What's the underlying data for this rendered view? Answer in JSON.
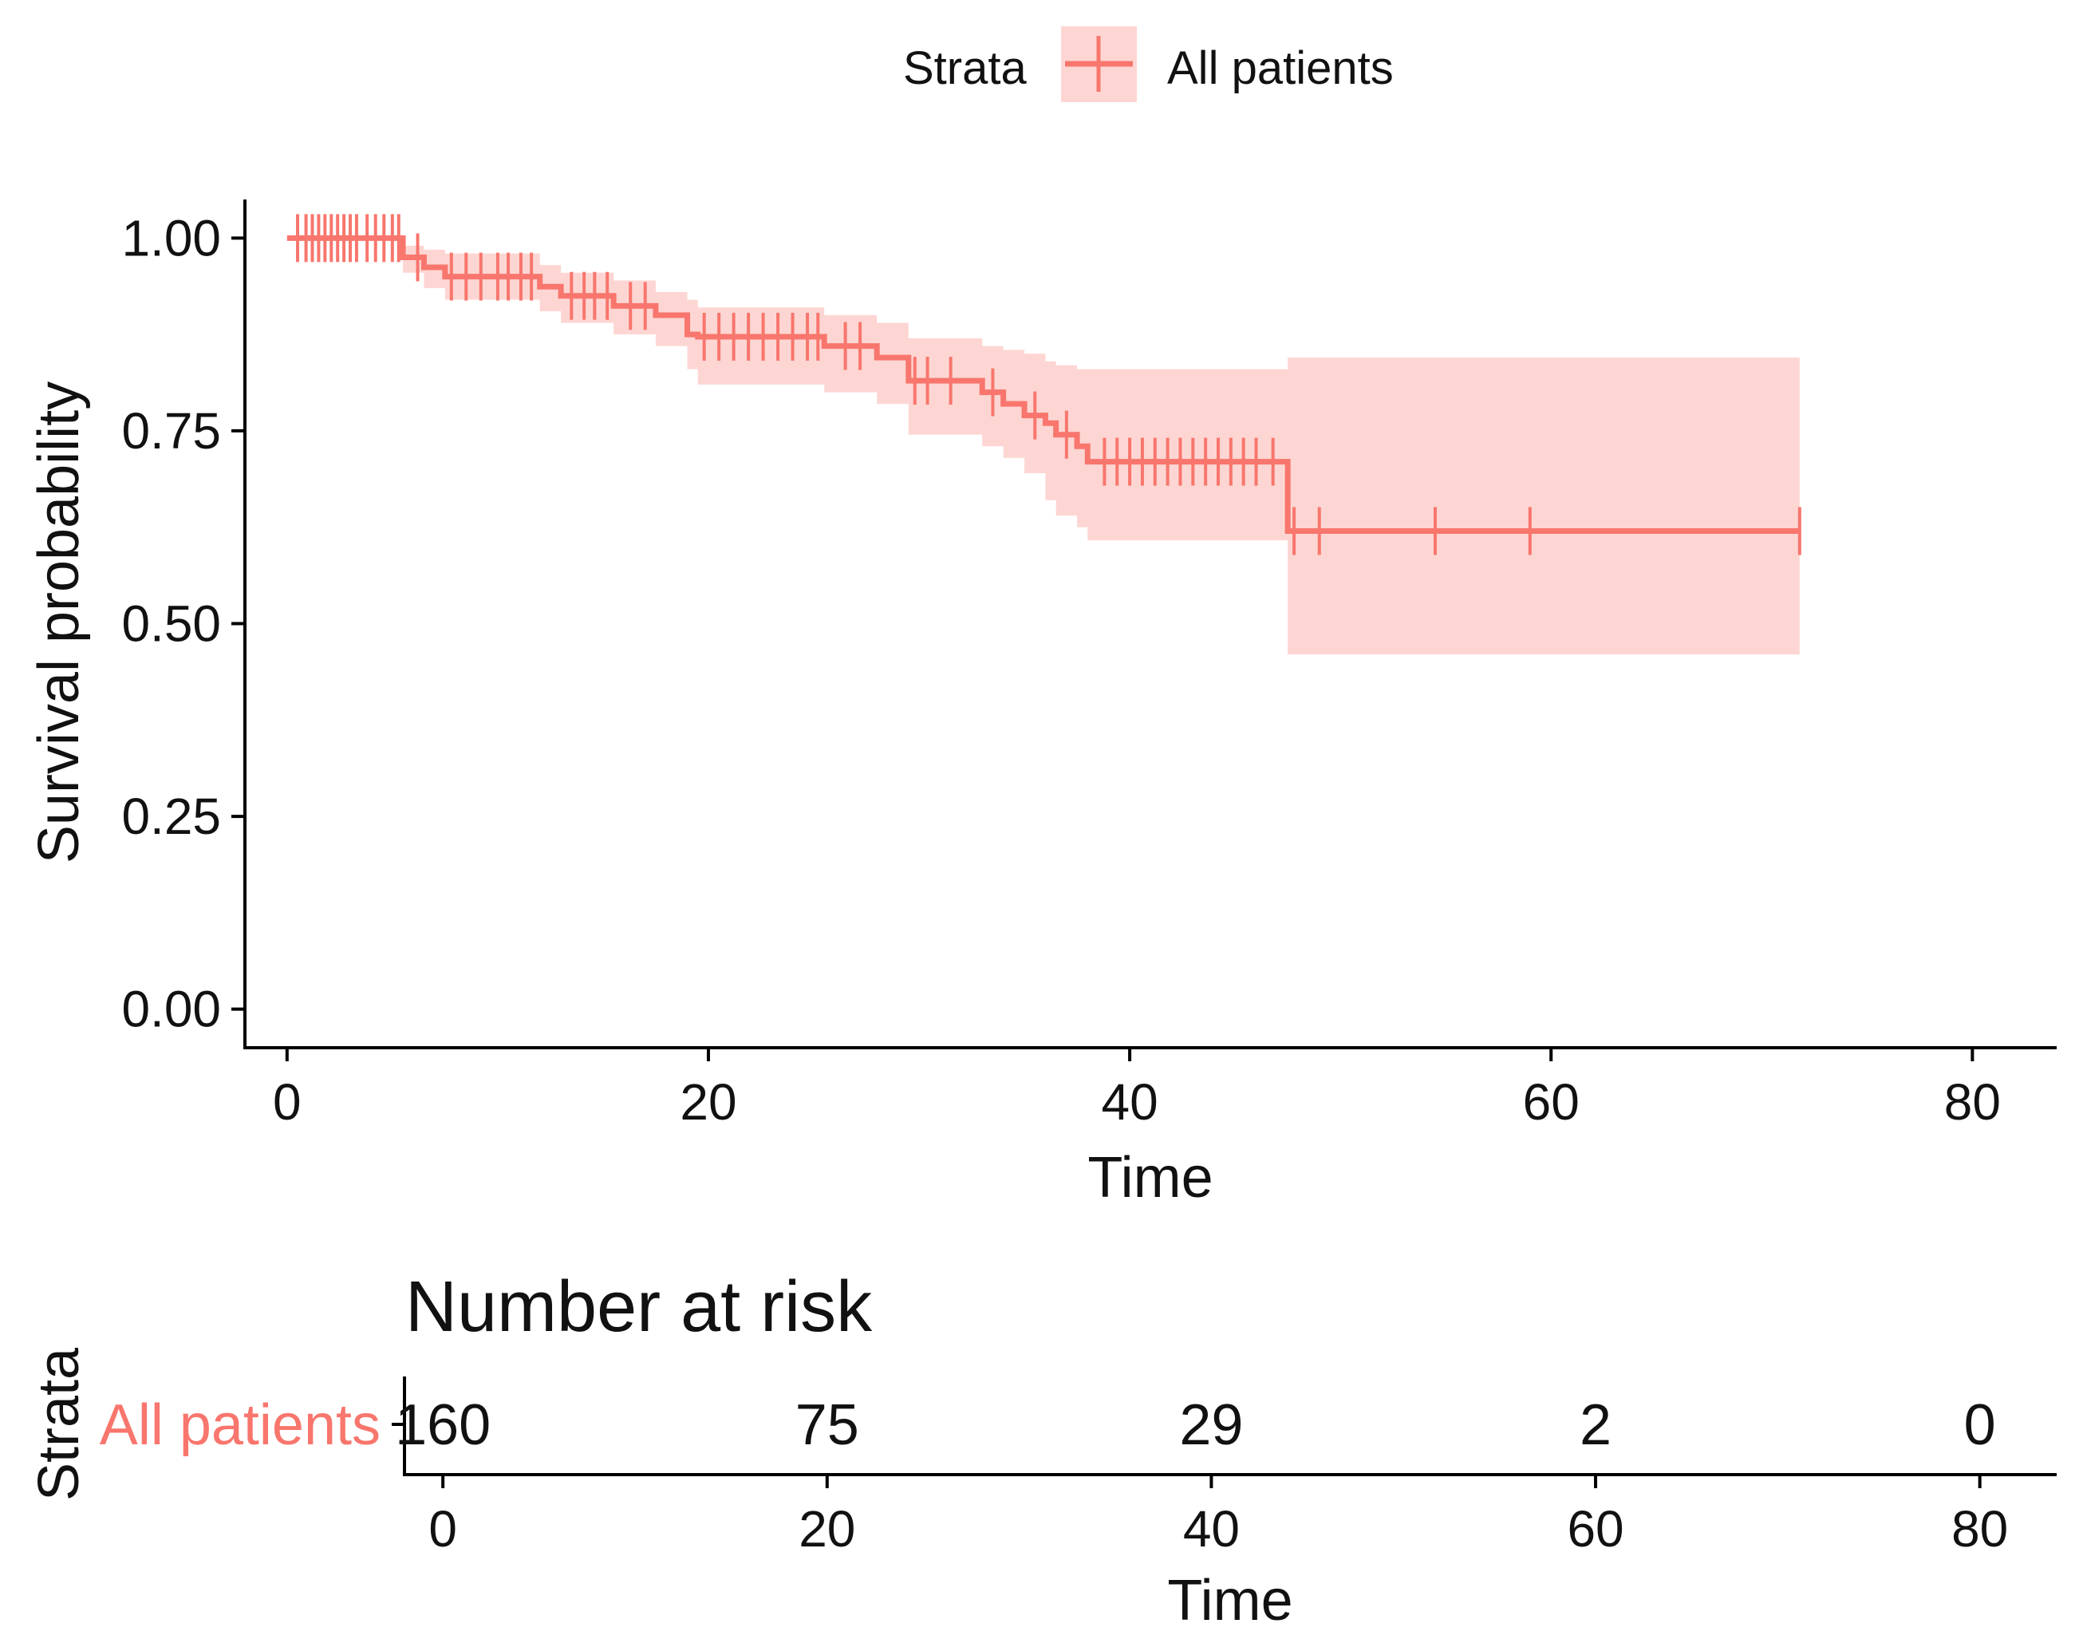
{
  "chart_data": [
    {
      "type": "line",
      "subtype": "kaplan-meier",
      "legend": {
        "title": "Strata",
        "entries": [
          "All patients"
        ],
        "placement": "top"
      },
      "xlabel": "Time",
      "ylabel": "Survival probability",
      "xlim": [
        -2,
        84
      ],
      "ylim": [
        -0.05,
        1.05
      ],
      "x_ticks": [
        0,
        20,
        40,
        60,
        80
      ],
      "y_ticks": [
        0.0,
        0.25,
        0.5,
        0.75,
        1.0
      ],
      "y_tick_labels": [
        "0.00",
        "0.25",
        "0.50",
        "0.75",
        "1.00"
      ],
      "grid": false,
      "series": [
        {
          "name": "All patients",
          "color": "#F8766D",
          "ci_color": "#F8766D",
          "steps": [
            {
              "t": 0.0,
              "s": 1.0,
              "lo": 1.0,
              "hi": 1.0
            },
            {
              "t": 5.5,
              "s": 0.975,
              "lo": 0.955,
              "hi": 0.99
            },
            {
              "t": 6.5,
              "s": 0.962,
              "lo": 0.935,
              "hi": 0.985
            },
            {
              "t": 7.5,
              "s": 0.95,
              "lo": 0.92,
              "hi": 0.98
            },
            {
              "t": 12.0,
              "s": 0.937,
              "lo": 0.905,
              "hi": 0.965
            },
            {
              "t": 13.0,
              "s": 0.925,
              "lo": 0.89,
              "hi": 0.955
            },
            {
              "t": 15.5,
              "s": 0.912,
              "lo": 0.875,
              "hi": 0.945
            },
            {
              "t": 17.5,
              "s": 0.9,
              "lo": 0.86,
              "hi": 0.93
            },
            {
              "t": 19.0,
              "s": 0.875,
              "lo": 0.83,
              "hi": 0.92
            },
            {
              "t": 19.5,
              "s": 0.872,
              "lo": 0.81,
              "hi": 0.91
            },
            {
              "t": 25.5,
              "s": 0.86,
              "lo": 0.8,
              "hi": 0.9
            },
            {
              "t": 28.0,
              "s": 0.845,
              "lo": 0.785,
              "hi": 0.89
            },
            {
              "t": 29.5,
              "s": 0.815,
              "lo": 0.745,
              "hi": 0.87
            },
            {
              "t": 33.0,
              "s": 0.8,
              "lo": 0.73,
              "hi": 0.86
            },
            {
              "t": 34.0,
              "s": 0.785,
              "lo": 0.715,
              "hi": 0.855
            },
            {
              "t": 35.0,
              "s": 0.77,
              "lo": 0.695,
              "hi": 0.85
            },
            {
              "t": 36.0,
              "s": 0.76,
              "lo": 0.66,
              "hi": 0.84
            },
            {
              "t": 36.5,
              "s": 0.745,
              "lo": 0.64,
              "hi": 0.835
            },
            {
              "t": 37.5,
              "s": 0.73,
              "lo": 0.625,
              "hi": 0.83
            },
            {
              "t": 38.0,
              "s": 0.71,
              "lo": 0.608,
              "hi": 0.83
            },
            {
              "t": 47.5,
              "s": 0.62,
              "lo": 0.46,
              "hi": 0.845
            },
            {
              "t": 71.8,
              "s": 0.62,
              "lo": 0.46,
              "hi": 0.845
            }
          ],
          "censor_times": [
            0.5,
            0.9,
            1.2,
            1.5,
            1.8,
            2.1,
            2.4,
            2.7,
            3.0,
            3.3,
            3.8,
            4.2,
            4.6,
            5.0,
            5.3,
            6.2,
            7.8,
            8.5,
            9.2,
            10.0,
            10.5,
            11.1,
            11.6,
            13.5,
            14.1,
            14.6,
            15.2,
            16.3,
            17.0,
            19.8,
            20.5,
            21.2,
            21.9,
            22.6,
            23.3,
            24.0,
            24.7,
            25.2,
            26.5,
            27.2,
            29.8,
            30.4,
            31.5,
            33.5,
            35.5,
            37.0,
            38.8,
            39.4,
            40.0,
            40.6,
            41.2,
            41.8,
            42.4,
            43.0,
            43.6,
            44.2,
            44.8,
            45.4,
            46.0,
            46.8,
            47.8,
            49.0,
            54.5,
            59.0,
            71.8
          ]
        }
      ]
    },
    {
      "type": "table",
      "title": "Number at risk",
      "ylabel": "Strata",
      "xlabel": "Time",
      "xlim": [
        -2,
        84
      ],
      "x_ticks": [
        0,
        20,
        40,
        60,
        80
      ],
      "row_label": "All patients",
      "times": [
        0,
        20,
        40,
        60,
        80
      ],
      "counts": [
        160,
        75,
        29,
        2,
        0
      ]
    }
  ]
}
